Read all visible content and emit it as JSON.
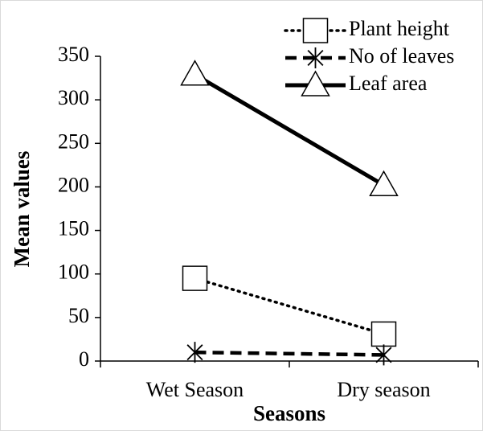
{
  "chart_data": {
    "type": "line",
    "categories": [
      "Wet Season",
      "Dry season"
    ],
    "series": [
      {
        "name": "Plant height",
        "color": "#000000",
        "dash": "dotted",
        "marker": "square",
        "values": [
          95,
          31
        ]
      },
      {
        "name": "No of leaves",
        "color": "#000000",
        "dash": "dashed",
        "marker": "asterisk",
        "values": [
          10,
          7
        ]
      },
      {
        "name": "Leaf area",
        "color": "#000000",
        "dash": "solid",
        "marker": "triangle",
        "values": [
          329,
          202
        ]
      }
    ],
    "ylim": [
      0,
      350
    ],
    "yticks": [
      0,
      50,
      100,
      150,
      200,
      250,
      300,
      350
    ],
    "xlabel": "Seasons",
    "ylabel": "Mean values",
    "legend": "top-right",
    "grid": false
  }
}
